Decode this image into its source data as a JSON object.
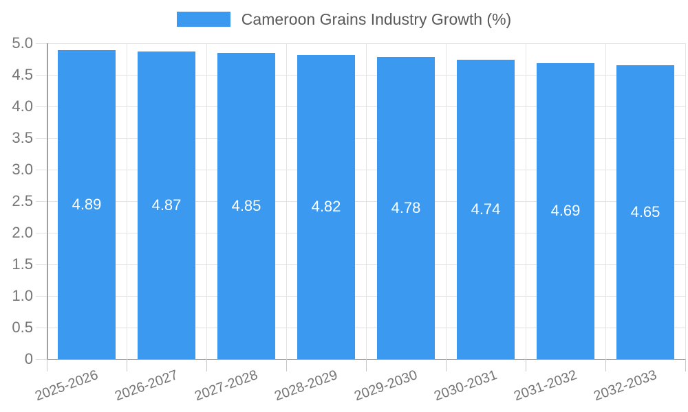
{
  "legend": {
    "label": "Cameroon Grains Industry Growth (%)"
  },
  "chart_data": {
    "type": "bar",
    "title": "Cameroon Grains Industry Growth (%)",
    "categories": [
      "2025-2026",
      "2026-2027",
      "2027-2028",
      "2028-2029",
      "2029-2030",
      "2030-2031",
      "2031-2032",
      "2032-2033"
    ],
    "values": [
      4.89,
      4.87,
      4.85,
      4.82,
      4.78,
      4.74,
      4.69,
      4.65
    ],
    "value_labels": [
      "4.89",
      "4.87",
      "4.85",
      "4.82",
      "4.78",
      "4.74",
      "4.69",
      "4.65"
    ],
    "xlabel": "",
    "ylabel": "",
    "ylim": [
      0,
      5
    ],
    "ytick_step": 0.5,
    "ytick_labels": [
      "0",
      "0.5",
      "1.0",
      "1.5",
      "2.0",
      "2.5",
      "3.0",
      "3.5",
      "4.0",
      "4.5",
      "5.0"
    ],
    "grid": true,
    "legend_position": "top",
    "bar_color": "#3b99f0",
    "value_label_color": "#ffffff",
    "axis_text_color": "#757575",
    "legend_text_color": "#58595b",
    "gridline_color": "#e3e3e3",
    "axis_line_color": "#a3a3a3"
  }
}
